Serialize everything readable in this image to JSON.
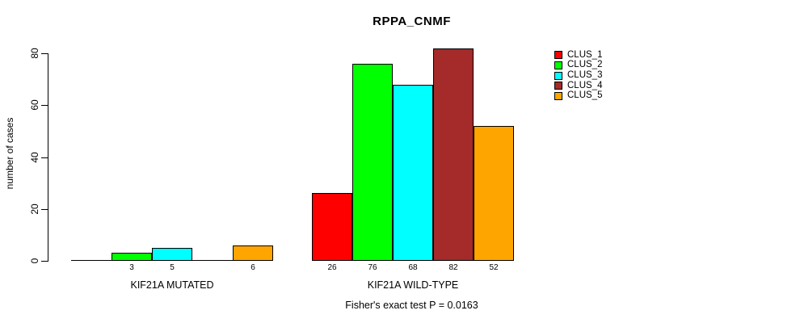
{
  "title": "RPPA_CNMF",
  "footer": "Fisher's exact test P = 0.0163",
  "chart_data": {
    "type": "bar",
    "title": "RPPA_CNMF",
    "xlabel": "",
    "ylabel": "number of cases",
    "ylim": [
      0,
      80
    ],
    "yticks": [
      0,
      20,
      40,
      60,
      80
    ],
    "grid": false,
    "legend_position": "right-outside",
    "categories": [
      "KIF21A MUTATED",
      "KIF21A WILD-TYPE"
    ],
    "series": [
      {
        "name": "CLUS_1",
        "color": "#ff0000",
        "values": [
          0,
          26
        ]
      },
      {
        "name": "CLUS_2",
        "color": "#00ff00",
        "values": [
          3,
          76
        ]
      },
      {
        "name": "CLUS_3",
        "color": "#00ffff",
        "values": [
          5,
          68
        ]
      },
      {
        "name": "CLUS_4",
        "color": "#a52a2a",
        "values": [
          0,
          82
        ]
      },
      {
        "name": "CLUS_5",
        "color": "#ffa500",
        "values": [
          6,
          52
        ]
      }
    ],
    "bar_value_labels": [
      "3",
      "5",
      "6",
      "26",
      "76",
      "68",
      "82",
      "52"
    ],
    "zero_value_labels_hidden": true,
    "annotation": "Fisher's exact test P = 0.0163"
  }
}
